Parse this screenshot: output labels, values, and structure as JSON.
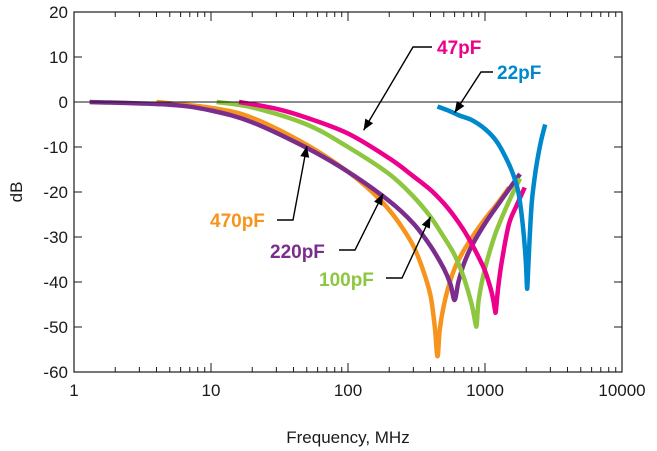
{
  "chart_data": {
    "type": "line",
    "title": "",
    "xlabel": "Frequency, MHz",
    "ylabel": "dB",
    "xscale": "log",
    "xlim": [
      1,
      10000
    ],
    "ylim": [
      -60,
      20
    ],
    "x_ticks": [
      1,
      10,
      100,
      1000,
      10000
    ],
    "x_tick_labels": [
      "1",
      "10",
      "100",
      "1000",
      "10000"
    ],
    "y_ticks": [
      20,
      10,
      0,
      -10,
      -20,
      -30,
      -40,
      -50,
      -60
    ],
    "y_tick_labels": [
      "20",
      "10",
      "0",
      "-10",
      "-20",
      "-30",
      "-40",
      "-50",
      "-60"
    ],
    "reference_line_y": 0,
    "grid": false,
    "legend": "none (series labeled directly with callout arrows)",
    "series": [
      {
        "name": "470pF",
        "color": "#F7941D",
        "x": [
          4,
          10,
          20,
          50,
          100,
          150,
          200,
          250,
          300,
          350,
          400,
          430,
          450,
          470,
          520,
          600,
          700,
          850,
          1000,
          1200,
          1500
        ],
        "y": [
          0,
          -1.3,
          -3.5,
          -9.5,
          -15.5,
          -20,
          -24,
          -28,
          -32,
          -37,
          -43,
          -50,
          -56.5,
          -50,
          -43,
          -37,
          -33,
          -29,
          -26,
          -23,
          -19
        ]
      },
      {
        "name": "220pF",
        "color": "#7B2D8E",
        "x": [
          1.3,
          5,
          10,
          20,
          50,
          100,
          200,
          300,
          400,
          500,
          560,
          600,
          640,
          700,
          800,
          1000,
          1300,
          1800
        ],
        "y": [
          0,
          -0.6,
          -1.9,
          -4.5,
          -10.2,
          -15.5,
          -22,
          -27,
          -32,
          -37,
          -40.5,
          -44,
          -40,
          -36,
          -32,
          -27,
          -22,
          -16
        ]
      },
      {
        "name": "100pF",
        "color": "#8DC63F",
        "x": [
          11,
          20,
          50,
          100,
          200,
          300,
          400,
          500,
          600,
          700,
          800,
          850,
          870,
          900,
          1000,
          1200,
          1500,
          1800
        ],
        "y": [
          0,
          -1.2,
          -5,
          -10,
          -16,
          -21,
          -25.5,
          -30,
          -34,
          -39,
          -45,
          -49,
          -49.5,
          -44,
          -37,
          -29,
          -22,
          -17
        ]
      },
      {
        "name": "47pF",
        "color": "#EC008C",
        "x": [
          16,
          30,
          50,
          100,
          200,
          300,
          400,
          500,
          600,
          700,
          800,
          900,
          1000,
          1100,
          1150,
          1180,
          1200,
          1250,
          1350,
          1500,
          1700,
          1950
        ],
        "y": [
          0,
          -1.5,
          -3.5,
          -7,
          -12.5,
          -16.5,
          -19.5,
          -22.5,
          -25.5,
          -28.5,
          -31.5,
          -34.5,
          -37.5,
          -41.5,
          -44,
          -46,
          -46.5,
          -41,
          -34,
          -27,
          -23,
          -19
        ]
      },
      {
        "name": "22pF",
        "color": "#0088CC",
        "x": [
          450,
          550,
          650,
          800,
          1000,
          1200,
          1400,
          1600,
          1750,
          1850,
          1950,
          2000,
          2030,
          2060,
          2120,
          2200,
          2350,
          2550,
          2750
        ],
        "y": [
          -1,
          -2,
          -3,
          -4,
          -6,
          -8.5,
          -12,
          -16,
          -20,
          -25,
          -32,
          -37,
          -41.5,
          -38,
          -30,
          -22,
          -15,
          -9,
          -5
        ]
      }
    ],
    "annotations": [
      {
        "text": "470pF",
        "color": "#F7941D",
        "arrow_to": {
          "x": 50,
          "y": -9.8
        }
      },
      {
        "text": "220pF",
        "color": "#7B2D8E",
        "arrow_to": {
          "x": 180,
          "y": -20.4
        }
      },
      {
        "text": "100pF",
        "color": "#8DC63F",
        "arrow_to": {
          "x": 400,
          "y": -25.5
        }
      },
      {
        "text": "47pF",
        "color": "#EC008C",
        "arrow_to": {
          "x": 130,
          "y": -6.3
        }
      },
      {
        "text": "22pF",
        "color": "#0088CC",
        "arrow_to": {
          "x": 600,
          "y": -2.4
        }
      }
    ]
  }
}
